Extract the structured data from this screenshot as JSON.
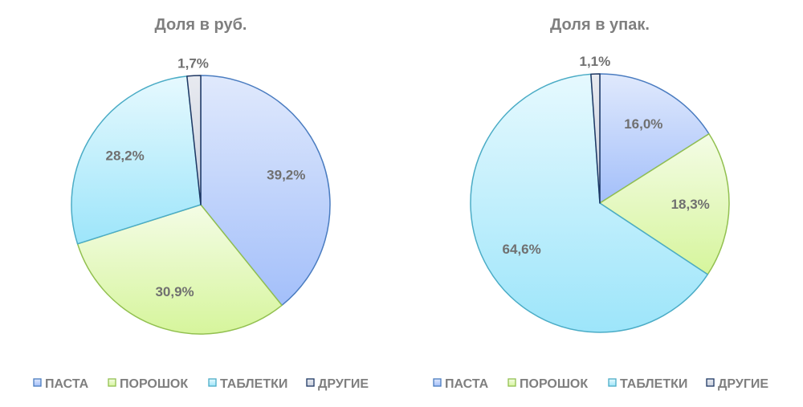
{
  "chart_data": [
    {
      "type": "pie",
      "title": "Доля в руб.",
      "categories": [
        "ПАСТА",
        "ПОРОШОК",
        "ТАБЛЕТКИ",
        "ДРУГИЕ"
      ],
      "values": [
        39.2,
        30.9,
        28.2,
        1.7
      ],
      "labels": [
        "39,2%",
        "30,9%",
        "28,2%",
        "1,7%"
      ],
      "legend": "bottom"
    },
    {
      "type": "pie",
      "title": "Доля в упак.",
      "categories": [
        "ПАСТА",
        "ПОРОШОК",
        "ТАБЛЕТКИ",
        "ДРУГИЕ"
      ],
      "values": [
        16.0,
        18.3,
        64.6,
        1.1
      ],
      "labels": [
        "16,0%",
        "18,3%",
        "64,6%",
        "1,1%"
      ],
      "legend": "bottom"
    }
  ],
  "colors": {
    "fill_top": [
      "#e0e9fc",
      "#f4fce6",
      "#e6f9fe",
      "#e8eaf0"
    ],
    "fill_bottom": [
      "#a3bffa",
      "#d6f59c",
      "#9de5fa",
      "#c9cfdd"
    ],
    "stroke": [
      "#4a7cc0",
      "#92c050",
      "#4bacc6",
      "#1f3864"
    ]
  }
}
